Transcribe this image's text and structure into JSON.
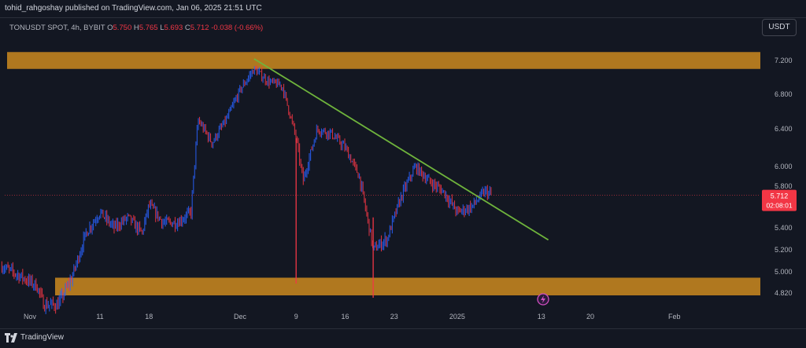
{
  "header": {
    "publish_text": "tohid_rahgoshay published on TradingView.com, Jan 06, 2025 21:51 UTC",
    "symbol_text": "TONUSDT SPOT, 4h, BYBIT",
    "o_label": "O",
    "o_value": "5.750",
    "h_label": "H",
    "h_value": "5.765",
    "l_label": "L",
    "l_value": "5.693",
    "c_label": "C",
    "c_value": "5.712",
    "change_text": "-0.038 (-0.66%)",
    "currency_label": "USDT"
  },
  "footer": {
    "brand": "TradingView",
    "logo_icon": "tradingview-logo-icon"
  },
  "chart_data": {
    "type": "candlestick",
    "symbol": "TONUSDT SPOT",
    "interval": "4h",
    "exchange": "BYBIT",
    "currency": "USDT",
    "x_ticks": [
      "Nov",
      "11",
      "18",
      "Dec",
      "9",
      "16",
      "23",
      "2025",
      "13",
      "20",
      "Feb"
    ],
    "y_ticks": [
      "7.200",
      "6.800",
      "6.400",
      "6.000",
      "5.800",
      "5.400",
      "5.200",
      "5.000",
      "4.820"
    ],
    "ylim": [
      4.65,
      7.5
    ],
    "last_price": {
      "value": "5.712",
      "countdown": "02:08:01",
      "color": "#f23645"
    },
    "zones": [
      {
        "name": "resistance-zone",
        "y_low": 7.1,
        "y_high": 7.3,
        "color": "#cc8a1e"
      },
      {
        "name": "support-zone",
        "y_low": 4.8,
        "y_high": 4.95,
        "color": "#cc8a1e"
      }
    ],
    "trendline": {
      "from": {
        "x": "Dec 3",
        "y": 7.22
      },
      "to": {
        "x": "Jan 14",
        "y": 5.29
      },
      "color": "#6fb43c"
    },
    "price_path": [
      [
        "Oct 28",
        5.05
      ],
      [
        "Oct 31",
        4.95
      ],
      [
        "Nov 2",
        4.88
      ],
      [
        "Nov 3",
        4.72
      ],
      [
        "Nov 5",
        4.72
      ],
      [
        "Nov 7",
        4.95
      ],
      [
        "Nov 9",
        5.35
      ],
      [
        "Nov 11",
        5.55
      ],
      [
        "Nov 13",
        5.4
      ],
      [
        "Nov 15",
        5.5
      ],
      [
        "Nov 17",
        5.35
      ],
      [
        "Nov 18",
        5.62
      ],
      [
        "Nov 20",
        5.45
      ],
      [
        "Nov 22",
        5.45
      ],
      [
        "Nov 24",
        5.55
      ],
      [
        "Nov 25",
        6.5
      ],
      [
        "Nov 27",
        6.25
      ],
      [
        "Nov 29",
        6.5
      ],
      [
        "Dec 1",
        6.85
      ],
      [
        "Dec 3",
        7.1
      ],
      [
        "Dec 5",
        6.95
      ],
      [
        "Dec 7",
        6.9
      ],
      [
        "Dec 9",
        6.3
      ],
      [
        "Dec 10",
        5.85
      ],
      [
        "Dec 12",
        6.4
      ],
      [
        "Dec 14",
        6.35
      ],
      [
        "Dec 16",
        6.2
      ],
      [
        "Dec 18",
        5.9
      ],
      [
        "Dec 20",
        5.2
      ],
      [
        "Dec 22",
        5.3
      ],
      [
        "Dec 24",
        5.7
      ],
      [
        "Dec 26",
        6.0
      ],
      [
        "Dec 28",
        5.85
      ],
      [
        "Dec 30",
        5.75
      ],
      [
        "Jan 1",
        5.55
      ],
      [
        "Jan 3",
        5.6
      ],
      [
        "Jan 5",
        5.75
      ],
      [
        "Jan 6",
        5.71
      ]
    ],
    "marker_icon": "lightning-bolt-icon"
  }
}
